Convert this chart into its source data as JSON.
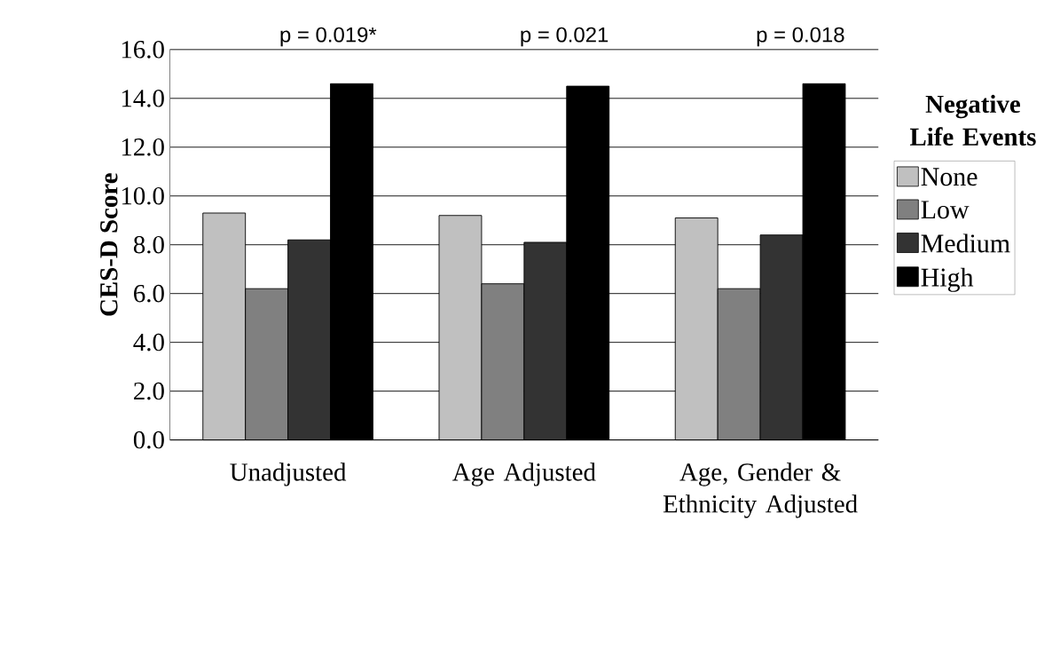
{
  "chart_data": {
    "type": "bar",
    "ylabel": "CES-D Score",
    "legend_title": "Negative Life Events",
    "categories": [
      "Unadjusted",
      "Age Adjusted",
      "Age, Gender & Ethnicity Adjusted"
    ],
    "series": [
      {
        "name": "None",
        "color": "#c0c0c0",
        "values": [
          9.3,
          9.2,
          9.1
        ]
      },
      {
        "name": "Low",
        "color": "#808080",
        "values": [
          6.2,
          6.4,
          6.2
        ]
      },
      {
        "name": "Medium",
        "color": "#333333",
        "values": [
          8.2,
          8.1,
          8.4
        ]
      },
      {
        "name": "High",
        "color": "#000000",
        "values": [
          14.6,
          14.5,
          14.6
        ]
      }
    ],
    "ylim": [
      0,
      16
    ],
    "yticks": [
      {
        "value": 0,
        "label": "0.0"
      },
      {
        "value": 2,
        "label": "2.0"
      },
      {
        "value": 4,
        "label": "4.0"
      },
      {
        "value": 6,
        "label": "6.0"
      },
      {
        "value": 8,
        "label": "8.0"
      },
      {
        "value": 10,
        "label": "10.0"
      },
      {
        "value": 12,
        "label": "12.0"
      },
      {
        "value": 14,
        "label": "14.0"
      },
      {
        "value": 16,
        "label": "16.0"
      }
    ],
    "grid": "y",
    "legend": "right",
    "annotations": [
      "p = 0.019*",
      "p = 0.021",
      "p = 0.018"
    ]
  }
}
